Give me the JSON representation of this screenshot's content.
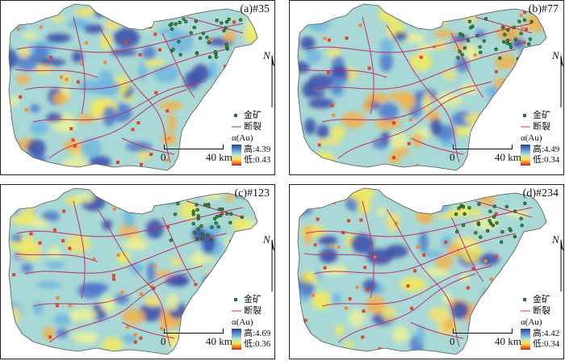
{
  "panels": [
    {
      "label": "(a)#35",
      "high": "高:4.39",
      "low": "低:0.43"
    },
    {
      "label": "(b)#77",
      "high": "高:4.49",
      "low": "低:0.34"
    },
    {
      "label": "(c)#123",
      "high": "高:4.69",
      "low": "低:0.36"
    },
    {
      "label": "(d)#234",
      "high": "高:4.42",
      "low": "低:0.34"
    }
  ],
  "legend": {
    "mine": "金矿",
    "fault": "断裂",
    "alpha": "α(Au)"
  },
  "scale": {
    "zero": "0",
    "distance": "40 km"
  },
  "north": "N",
  "colors": {
    "high": "#2d3a9e",
    "mid": "#bfe4d3",
    "low": "#d7191c",
    "fault": "#c0306a",
    "mine": "#2e8b3a"
  }
}
